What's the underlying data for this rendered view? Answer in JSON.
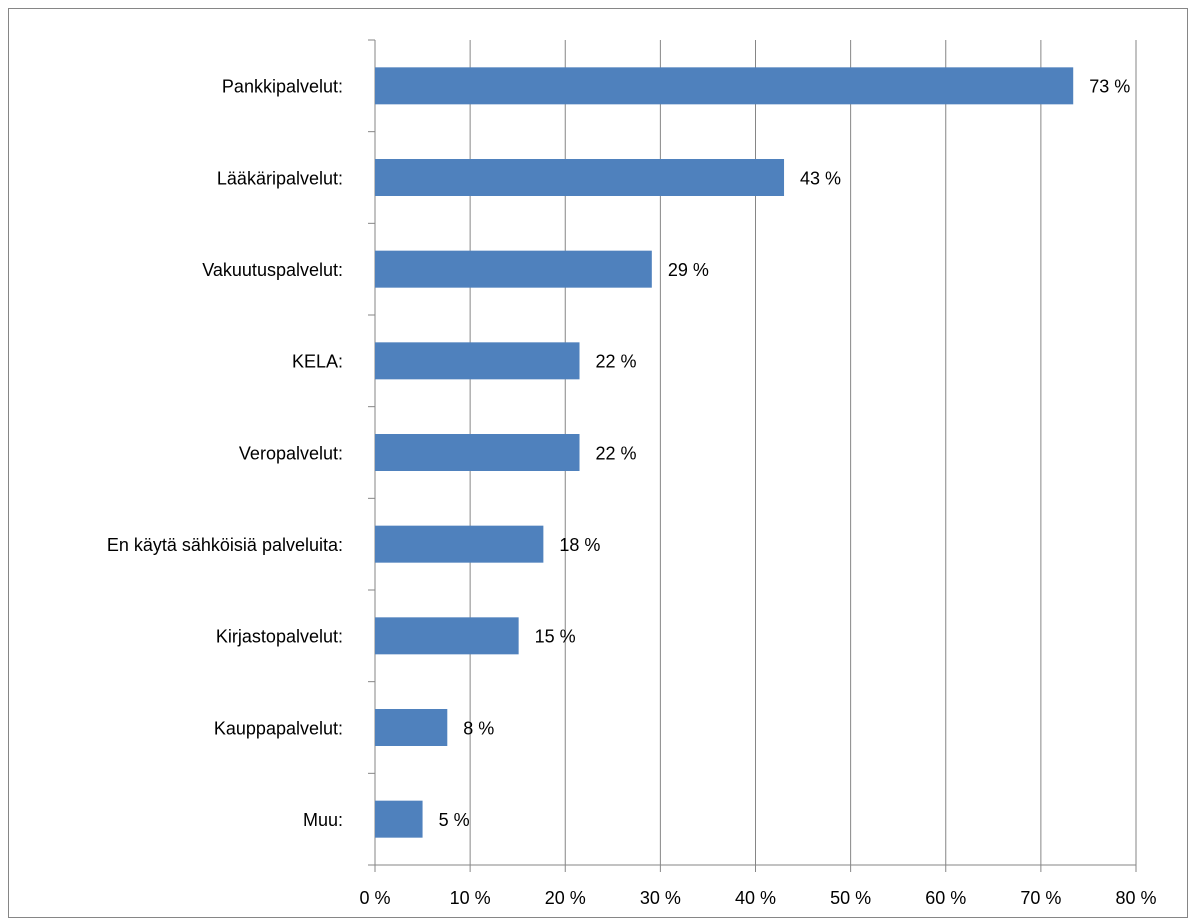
{
  "chart_data": {
    "type": "bar",
    "orientation": "horizontal",
    "categories": [
      "Pankkipalvelut:",
      "Lääkäripalvelut:",
      "Vakuutuspalvelut:",
      "KELA:",
      "Veropalvelut:",
      "En käytä sähköisiä palveluita:",
      "Kirjastopalvelut:",
      "Kauppapalvelut:",
      "Muu:"
    ],
    "values": [
      73.4,
      43.0,
      29.1,
      21.5,
      21.5,
      17.7,
      15.1,
      7.6,
      5.0
    ],
    "value_labels": [
      "73 %",
      "43 %",
      "29 %",
      "22 %",
      "22 %",
      "18 %",
      "15 %",
      "8 %",
      "5 %"
    ],
    "color": "#4f81bd",
    "xlim": [
      0,
      80
    ],
    "xticks": [
      {
        "value": 0,
        "label": "0 %"
      },
      {
        "value": 10,
        "label": "10 %"
      },
      {
        "value": 20,
        "label": "20 %"
      },
      {
        "value": 30,
        "label": "30 %"
      },
      {
        "value": 40,
        "label": "40 %"
      },
      {
        "value": 50,
        "label": "50 %"
      },
      {
        "value": 60,
        "label": "60 %"
      },
      {
        "value": 70,
        "label": "70 %"
      },
      {
        "value": 80,
        "label": "80 %"
      }
    ],
    "grid": true
  }
}
